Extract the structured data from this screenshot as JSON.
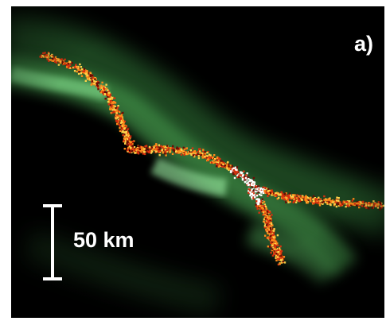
{
  "figure": {
    "panel_label": "a)",
    "scale_bar_label": "50 km",
    "colors": {
      "background": "#000000",
      "aurora_green": "#6fe07a",
      "scatter_hot": "#ff9a1a",
      "scatter_dark": "#b01808",
      "scatter_white": "#ffffff",
      "scale_bar": "#ffffff"
    }
  }
}
